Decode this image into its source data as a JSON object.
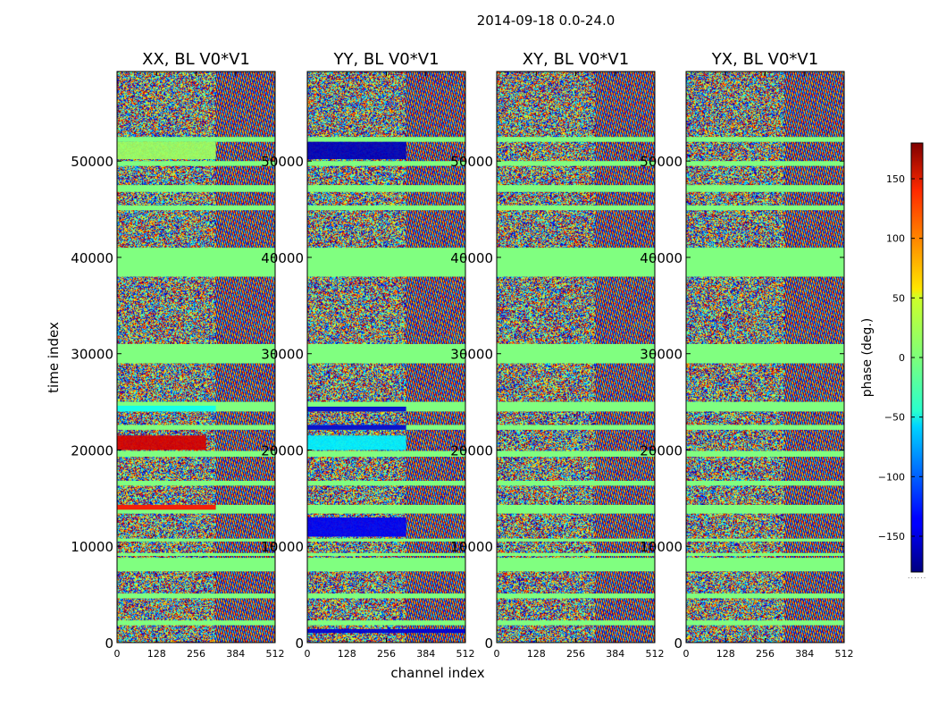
{
  "chart_data": {
    "type": "heatmap",
    "title": "2014-09-18 0.0-24.0",
    "xlabel": "channel index",
    "ylabel": "time index",
    "xlim": [
      0,
      512
    ],
    "ylim": [
      0,
      59300
    ],
    "xticks": [
      "0",
      "128",
      "256",
      "384",
      "512"
    ],
    "yticks": [
      "0",
      "10000",
      "20000",
      "30000",
      "40000",
      "50000"
    ],
    "panels": [
      {
        "title": "XX, BL V0*V1",
        "polarization": "XX"
      },
      {
        "title": "YY, BL V0*V1",
        "polarization": "YY"
      },
      {
        "title": "XY, BL V0*V1",
        "polarization": "XY"
      },
      {
        "title": "YX, BL V0*V1",
        "polarization": "YX"
      }
    ],
    "colorbar": {
      "label": "phase (deg.)",
      "range": [
        -180,
        180
      ],
      "ticks": [
        "150",
        "100",
        "50",
        "0",
        "−50",
        "−100",
        "−150"
      ],
      "colormap": "jet"
    },
    "flagged_time_ranges": [
      [
        1800,
        2300
      ],
      [
        4600,
        5100
      ],
      [
        7400,
        8800
      ],
      [
        9000,
        9300
      ],
      [
        10500,
        10800
      ],
      [
        13400,
        14300
      ],
      [
        16300,
        16800
      ],
      [
        19300,
        19900
      ],
      [
        22100,
        22600
      ],
      [
        24000,
        25000
      ],
      [
        29000,
        31000
      ],
      [
        38000,
        41000
      ],
      [
        44900,
        45400
      ],
      [
        46800,
        47500
      ],
      [
        49500,
        50000
      ],
      [
        52000,
        52500
      ]
    ],
    "approx_phase_blocks": [
      {
        "panel": "XX",
        "time": [
          20000,
          21500
        ],
        "channels": [
          0,
          288
        ],
        "phase_deg": 150
      },
      {
        "panel": "XX",
        "time": [
          13800,
          14300
        ],
        "channels": [
          0,
          320
        ],
        "phase_deg": 130
      },
      {
        "panel": "XX",
        "time": [
          24000,
          24600
        ],
        "channels": [
          0,
          320
        ],
        "phase_deg": -40
      },
      {
        "panel": "XX",
        "time": [
          50200,
          52000
        ],
        "channels": [
          0,
          320
        ],
        "phase_deg": 10
      },
      {
        "panel": "YY",
        "time": [
          50200,
          52000
        ],
        "channels": [
          0,
          320
        ],
        "phase_deg": -160
      },
      {
        "panel": "YY",
        "time": [
          20000,
          21500
        ],
        "channels": [
          0,
          320
        ],
        "phase_deg": -50
      },
      {
        "panel": "YY",
        "time": [
          22100,
          22600
        ],
        "channels": [
          0,
          320
        ],
        "phase_deg": -150
      },
      {
        "panel": "YY",
        "time": [
          24000,
          24500
        ],
        "channels": [
          0,
          320
        ],
        "phase_deg": -150
      },
      {
        "panel": "YY",
        "time": [
          11000,
          13000
        ],
        "channels": [
          0,
          320
        ],
        "phase_deg": -140
      },
      {
        "panel": "YY",
        "time": [
          1000,
          1400
        ],
        "channels": [
          0,
          512
        ],
        "phase_deg": -150
      }
    ]
  },
  "colors": {
    "flagged": "#80ff80",
    "axes": "#000000",
    "background": "#ffffff"
  }
}
